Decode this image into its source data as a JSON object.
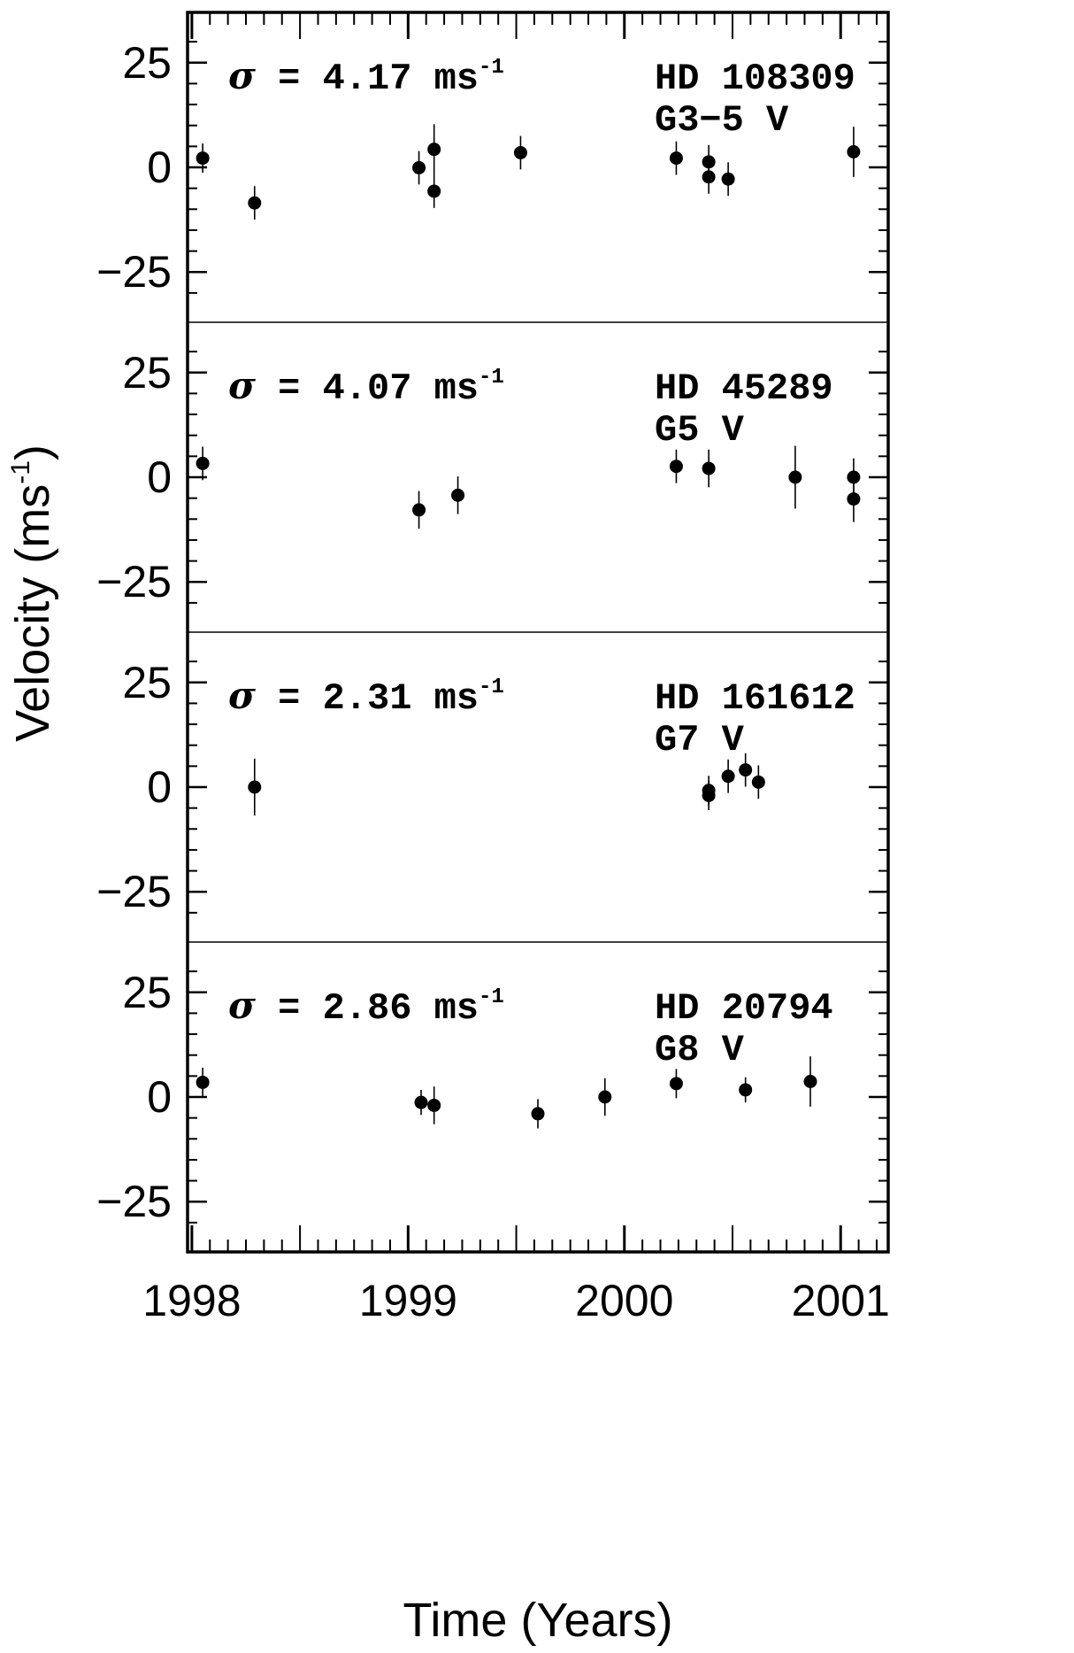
{
  "chart_data": {
    "type": "scatter",
    "xlabel": "Time (Years)",
    "ylabel": "Velocity (ms",
    "ylabel_sup": "-1",
    "ylabel_close": ")",
    "xlim": [
      1997.98,
      2001.22
    ],
    "ylim": [
      -37,
      37
    ],
    "xticks": [
      1998,
      1999,
      2000,
      2001
    ],
    "xtick_labels": [
      "1998",
      "1999",
      "2000",
      "2001"
    ],
    "yticks": [
      25,
      0,
      -25
    ],
    "ytick_labels": [
      "25",
      "0",
      "−25"
    ],
    "sigma_symbol": "σ",
    "panels": [
      {
        "sigma_value": " = 4.17 ms",
        "sigma_sup": "-1",
        "star": "HD 108309",
        "spectral_type": "G3−5 V",
        "points": [
          {
            "x": 1998.05,
            "y": 2.2,
            "err": 3.5
          },
          {
            "x": 1998.29,
            "y": -8.5,
            "err": 4.0
          },
          {
            "x": 1999.05,
            "y": -0.1,
            "err": 4.0
          },
          {
            "x": 1999.12,
            "y": 4.3,
            "err": 6.0
          },
          {
            "x": 1999.12,
            "y": -5.7,
            "err": 4.0
          },
          {
            "x": 1999.52,
            "y": 3.5,
            "err": 4.0
          },
          {
            "x": 2000.24,
            "y": 2.2,
            "err": 4.0
          },
          {
            "x": 2000.39,
            "y": 1.3,
            "err": 4.0
          },
          {
            "x": 2000.39,
            "y": -2.3,
            "err": 4.0
          },
          {
            "x": 2000.48,
            "y": -2.8,
            "err": 4.0
          },
          {
            "x": 2001.06,
            "y": 3.7,
            "err": 6.0
          }
        ]
      },
      {
        "sigma_value": " = 4.07 ms",
        "sigma_sup": "-1",
        "star": "HD 45289",
        "spectral_type": "G5 V",
        "points": [
          {
            "x": 1998.05,
            "y": 3.3,
            "err": 4.0
          },
          {
            "x": 1999.05,
            "y": -7.8,
            "err": 4.5
          },
          {
            "x": 1999.23,
            "y": -4.3,
            "err": 4.5
          },
          {
            "x": 2000.24,
            "y": 2.6,
            "err": 4.0
          },
          {
            "x": 2000.39,
            "y": 2.1,
            "err": 4.5
          },
          {
            "x": 2000.79,
            "y": 0.0,
            "err": 7.5
          },
          {
            "x": 2001.06,
            "y": 0.0,
            "err": 4.5
          },
          {
            "x": 2001.06,
            "y": -5.2,
            "err": 5.5
          }
        ]
      },
      {
        "sigma_value": " = 2.31 ms",
        "sigma_sup": "-1",
        "star": "HD 161612",
        "spectral_type": "G7 V",
        "points": [
          {
            "x": 1998.29,
            "y": 0.0,
            "err": 6.8
          },
          {
            "x": 2000.39,
            "y": -0.8,
            "err": 3.5
          },
          {
            "x": 2000.39,
            "y": -2.0,
            "err": 3.5
          },
          {
            "x": 2000.48,
            "y": 2.6,
            "err": 4.0
          },
          {
            "x": 2000.56,
            "y": 4.1,
            "err": 4.0
          },
          {
            "x": 2000.62,
            "y": 1.2,
            "err": 4.0
          }
        ]
      },
      {
        "sigma_value": " = 2.86 ms",
        "sigma_sup": "-1",
        "star": "HD 20794",
        "spectral_type": "G8 V",
        "points": [
          {
            "x": 1998.05,
            "y": 3.5,
            "err": 3.5
          },
          {
            "x": 1999.06,
            "y": -1.3,
            "err": 3.0
          },
          {
            "x": 1999.12,
            "y": -2.0,
            "err": 4.5
          },
          {
            "x": 1999.6,
            "y": -4.0,
            "err": 3.5
          },
          {
            "x": 1999.91,
            "y": 0.0,
            "err": 4.5
          },
          {
            "x": 2000.24,
            "y": 3.2,
            "err": 3.5
          },
          {
            "x": 2000.56,
            "y": 1.7,
            "err": 3.0
          },
          {
            "x": 2000.86,
            "y": 3.7,
            "err": 6.0
          }
        ]
      }
    ]
  }
}
